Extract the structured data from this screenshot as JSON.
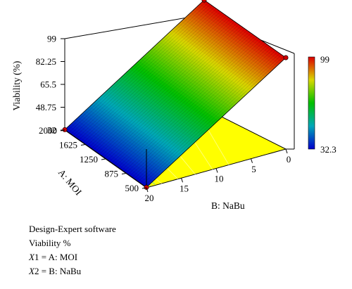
{
  "chart_data": {
    "type": "surface3d",
    "title": "",
    "software_note": "Design-Expert software",
    "response": {
      "label": "Viability (%)",
      "ticks": [
        "32",
        "48.75",
        "65.5",
        "82.25",
        "99"
      ],
      "zlim": [
        32,
        99
      ]
    },
    "x_axis": {
      "label": "A: MOI",
      "ticks": [
        "500",
        "875",
        "1250",
        "1625",
        "2000"
      ],
      "range": [
        500,
        2000
      ]
    },
    "y_axis": {
      "label": "B: NaBu",
      "ticks": [
        "20",
        "15",
        "10",
        "5",
        "0"
      ],
      "range": [
        0,
        20
      ]
    },
    "corners": [
      {
        "MOI": 2000,
        "NaBu": 20,
        "viability": 32.3
      },
      {
        "MOI": 500,
        "NaBu": 20,
        "viability": 32.3
      },
      {
        "MOI": 500,
        "NaBu": 0,
        "viability": 99
      },
      {
        "MOI": 2000,
        "NaBu": 0,
        "viability": 99
      }
    ],
    "colorbar": {
      "max_label": "99",
      "min_label": "32.3",
      "colors": [
        "#0000cc",
        "#00a8b8",
        "#00c000",
        "#d8d800",
        "#dd0000"
      ]
    },
    "floor_color": "#ffff00"
  },
  "caption": {
    "line1": "Design-Expert software",
    "line2": "Viability %",
    "x1_var": "X",
    "x1_sub": "1",
    "x1_rest": " = A: MOI",
    "x2_var": "X",
    "x2_sub": "2",
    "x2_rest": " = B: NaBu"
  }
}
